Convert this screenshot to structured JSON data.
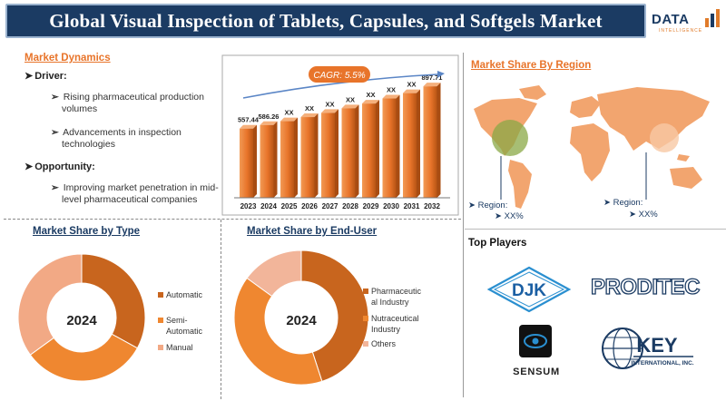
{
  "header": {
    "title": "Global Visual Inspection of Tablets, Capsules, and Softgels Market",
    "logo_text": "DATA",
    "logo_sub": "INTELLIGENCE"
  },
  "dynamics": {
    "title": "Market Dynamics",
    "driver_label": "Driver:",
    "drivers": [
      "Rising pharmaceutical production",
      "volumes",
      "Advancements in inspection",
      "technologies"
    ],
    "opportunity_label": "Opportunity:",
    "opportunities": [
      "Improving market penetration in mid-",
      "level pharmaceutical companies"
    ]
  },
  "chart_data": [
    {
      "type": "bar",
      "title": "",
      "categories": [
        "2023",
        "2024",
        "2025",
        "2026",
        "2027",
        "2028",
        "2029",
        "2030",
        "2031",
        "2032"
      ],
      "values": [
        557.44,
        586.26,
        617,
        650,
        684,
        721,
        759,
        800,
        843,
        897.71
      ],
      "labels": [
        "557.44",
        "586.26",
        "XX",
        "XX",
        "XX",
        "XX",
        "XX",
        "XX",
        "XX",
        "897.71"
      ],
      "annotation": "CAGR: 5.5%",
      "xlabel": "",
      "ylabel": "",
      "ylim": [
        0,
        950
      ]
    },
    {
      "type": "pie",
      "title": "Market Share by Type",
      "center_label": "2024",
      "categories": [
        "Automatic",
        "Semi-Automatic",
        "Manual"
      ],
      "legend_lines": [
        [
          "Automatic"
        ],
        [
          "Semi-",
          "Automatic"
        ],
        [
          "Manual"
        ]
      ],
      "values": [
        33,
        32,
        35
      ],
      "colors": [
        "#c8651e",
        "#ef8730",
        "#f2a985"
      ]
    },
    {
      "type": "pie",
      "title": "Market Share by End-User",
      "center_label": "2024",
      "categories": [
        "Pharmaceutical Industry",
        "Nutraceutical Industry",
        "Others"
      ],
      "legend_lines": [
        [
          "Pharmaceutic",
          "al Industry"
        ],
        [
          "Nutraceutical",
          "Industry"
        ],
        [
          "Others"
        ]
      ],
      "values": [
        45,
        40,
        15
      ],
      "colors": [
        "#c8651e",
        "#ef8730",
        "#f2b59a"
      ]
    }
  ],
  "region": {
    "title": "Market Share By Region",
    "label1": "Region:",
    "value1": "XX%",
    "label2": "Region:",
    "value2": "XX%"
  },
  "players": {
    "title": "Top Players",
    "djk": "DJK",
    "proditec": "PRODITEC",
    "sensum": "SENSUM",
    "key": "KEY",
    "key_sub": "INTERNATIONAL, INC."
  },
  "colors": {
    "orange": "#e8742a",
    "navy": "#1b3b63",
    "bar": "#e8742a"
  }
}
